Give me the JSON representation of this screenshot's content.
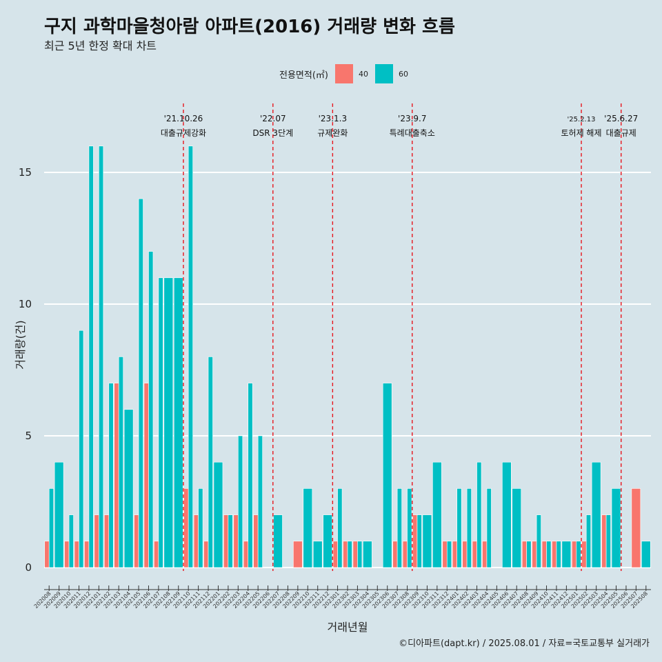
{
  "title": "구지 과학마을청아람 아파트(2016) 거래량 변화 흐름",
  "subtitle": "최근 5년 한정 확대 차트",
  "legend": {
    "title": "전용면적(㎡)",
    "items": [
      {
        "label": "40",
        "color": "#F8766D"
      },
      {
        "label": "60",
        "color": "#00BFC4"
      }
    ]
  },
  "caption": "©디아파트(dapt.kr) / 2025.08.01 / 자료=국토교통부 실거래가",
  "chart_data": {
    "type": "bar",
    "xlabel": "거래년월",
    "ylabel": "거래량(건)",
    "ylim": [
      0,
      17
    ],
    "yticks": [
      0,
      5,
      10,
      15
    ],
    "categories": [
      "202008",
      "202009",
      "202010",
      "202011",
      "202012",
      "202101",
      "202102",
      "202103",
      "202104",
      "202105",
      "202106",
      "202107",
      "202108",
      "202109",
      "202110",
      "202111",
      "202112",
      "202201",
      "202202",
      "202203",
      "202204",
      "202205",
      "202206",
      "202207",
      "202208",
      "202209",
      "202210",
      "202211",
      "202212",
      "202301",
      "202302",
      "202303",
      "202304",
      "202305",
      "202306",
      "202307",
      "202308",
      "202309",
      "202310",
      "202311",
      "202312",
      "202401",
      "202402",
      "202403",
      "202404",
      "202405",
      "202406",
      "202407",
      "202408",
      "202409",
      "202410",
      "202411",
      "202412",
      "202501",
      "202502",
      "202503",
      "202504",
      "202505",
      "202506",
      "202507",
      "202508"
    ],
    "series": [
      {
        "name": "40",
        "color": "#F8766D",
        "values": [
          1,
          0,
          1,
          1,
          1,
          2,
          2,
          7,
          0,
          2,
          7,
          1,
          0,
          0,
          3,
          2,
          1,
          0,
          2,
          2,
          1,
          2,
          0,
          0,
          0,
          1,
          0,
          0,
          0,
          1,
          1,
          1,
          0,
          0,
          0,
          1,
          1,
          2,
          0,
          0,
          1,
          1,
          1,
          1,
          1,
          0,
          0,
          0,
          1,
          1,
          1,
          1,
          0,
          1,
          1,
          0,
          2,
          0,
          0,
          3,
          0
        ]
      },
      {
        "name": "60",
        "color": "#00BFC4",
        "values": [
          3,
          4,
          2,
          9,
          16,
          16,
          7,
          8,
          6,
          14,
          12,
          11,
          11,
          11,
          16,
          3,
          8,
          4,
          2,
          5,
          7,
          5,
          0,
          2,
          0,
          0,
          3,
          1,
          2,
          3,
          1,
          1,
          1,
          0,
          7,
          3,
          3,
          2,
          2,
          4,
          1,
          3,
          3,
          4,
          3,
          0,
          4,
          3,
          1,
          2,
          1,
          1,
          1,
          1,
          2,
          4,
          2,
          3,
          0,
          0,
          1
        ]
      }
    ],
    "events": [
      {
        "category": "202110",
        "date": "'21.10.26",
        "label": "대출규제강화"
      },
      {
        "category": "202207",
        "date": "'22.07",
        "label": "DSR 3단계"
      },
      {
        "category": "202301",
        "date": "'23.1.3",
        "label": "규제완화"
      },
      {
        "category": "202309",
        "date": "'23.9.7",
        "label": "특례대출축소"
      },
      {
        "category": "202502",
        "date": "'25.2.13",
        "label": "토허제 해제"
      },
      {
        "category": "202506",
        "date": "'25.6.27",
        "label": "대출규제"
      }
    ]
  }
}
